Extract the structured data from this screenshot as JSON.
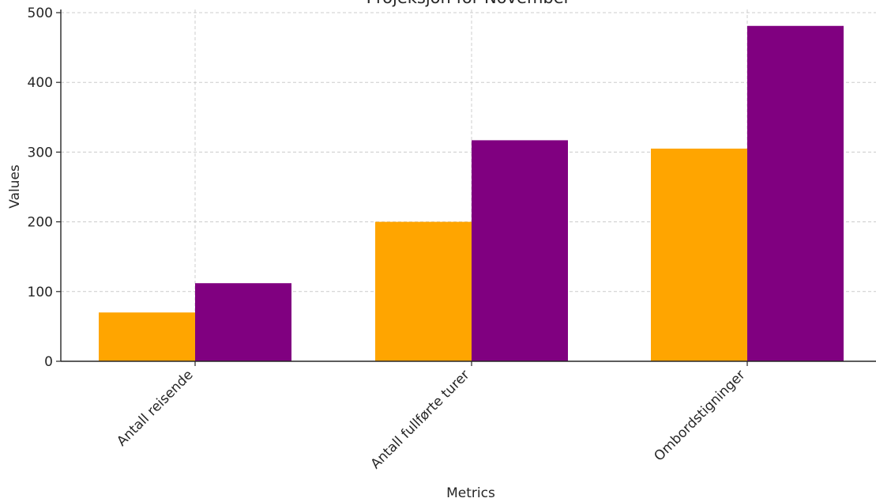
{
  "chart_data": {
    "type": "bar",
    "title": "Projeksjon for November",
    "xlabel": "Metrics",
    "ylabel": "Values",
    "categories": [
      "Antall reisende",
      "Antall fullførte turer",
      "Ombordstigninger"
    ],
    "series": [
      {
        "values": [
          70,
          200,
          305
        ],
        "color": "#FFA500"
      },
      {
        "values": [
          112,
          317,
          481
        ],
        "color": "#800080"
      }
    ],
    "ylim": [
      0,
      500
    ],
    "yticks": [
      0,
      100,
      200,
      300,
      400,
      500
    ],
    "grid": true,
    "legend": false
  }
}
